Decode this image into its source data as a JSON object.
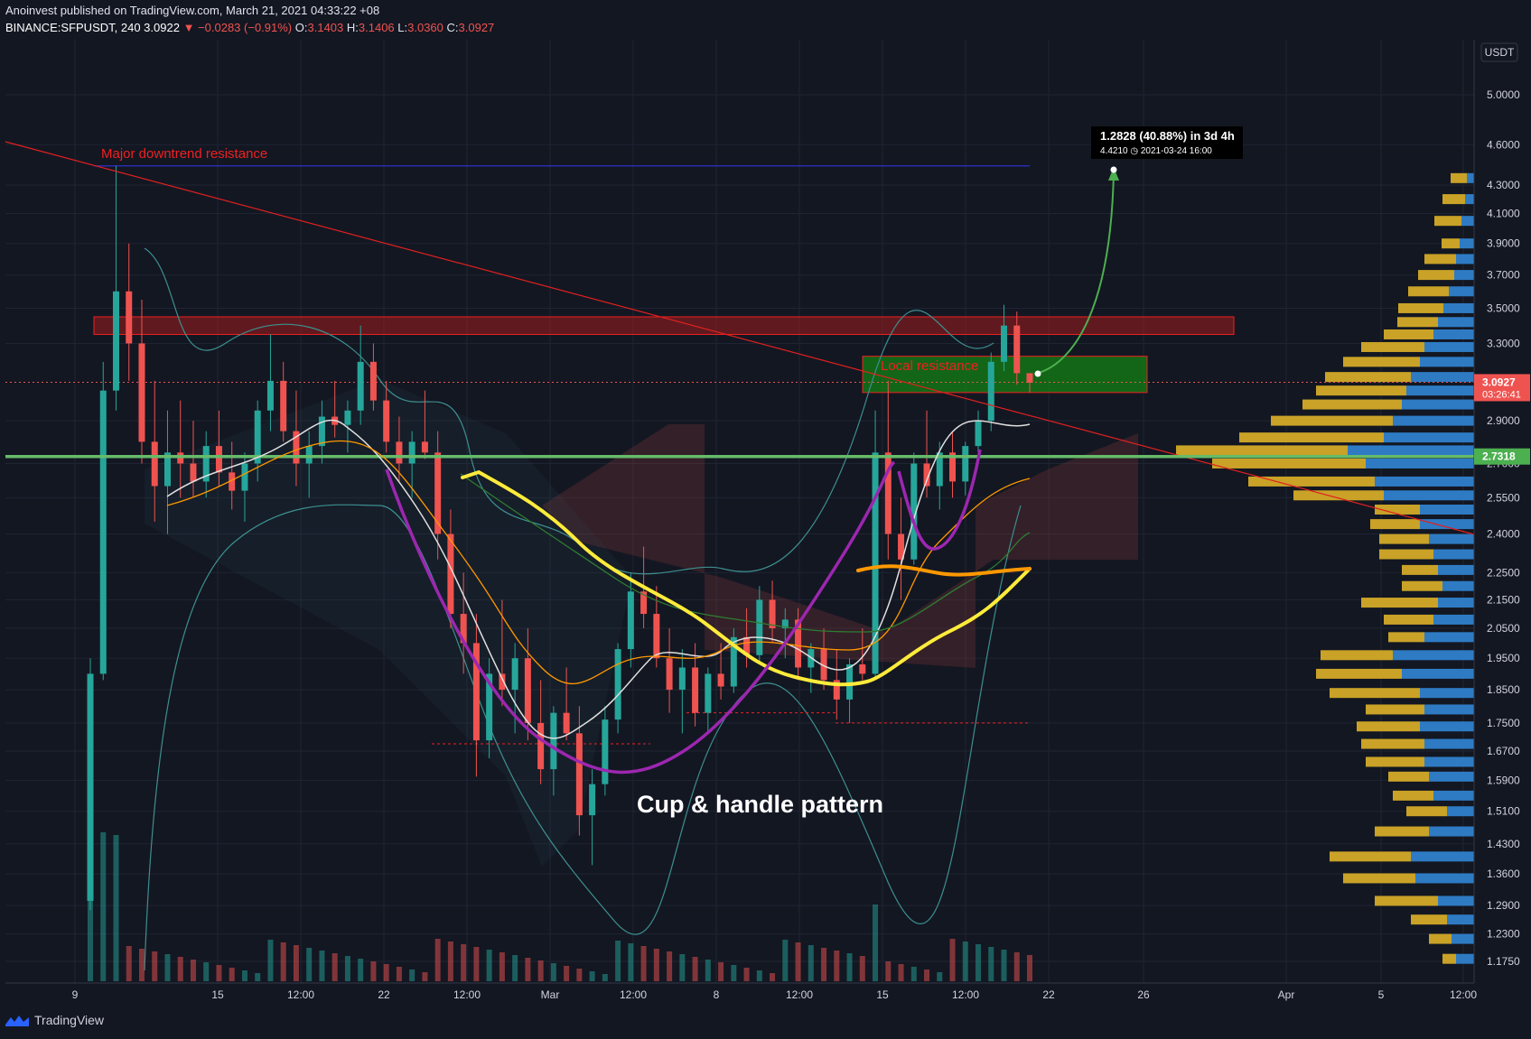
{
  "header": {
    "publisher_line": "Anoinvest published on TradingView.com, March 21, 2021 04:33:22 +08",
    "symbol": "BINANCE:SFPUSDT, 240",
    "last": "3.0922",
    "change_arrow": "▼",
    "change": "−0.0283 (−0.91%)",
    "o_label": "O:",
    "o": "3.1403",
    "h_label": "H:",
    "h": "3.1406",
    "l_label": "L:",
    "l": "3.0360",
    "c_label": "C:",
    "c": "3.0927"
  },
  "currency": "USDT",
  "footer": {
    "brand": "TradingView"
  },
  "colors": {
    "background": "#131722",
    "up": "#26a69a",
    "down": "#ef5350",
    "price_badge": "#ef5350",
    "level_badge": "#4caf50",
    "cup_line": "#9c27b0",
    "ma_yellow": "#ffeb3b",
    "ma_orange": "#ff9800",
    "volume_profile_gold": "#c9a227",
    "volume_profile_blue": "#2e7bc4"
  },
  "chart_data": {
    "type": "candlestick",
    "instrument": "BINANCE:SFPUSDT",
    "timeframe": "240",
    "y_axis": {
      "scale": "log",
      "ticks": [
        "5.0000",
        "4.6000",
        "4.3000",
        "4.1000",
        "3.9000",
        "3.7000",
        "3.5000",
        "3.3000",
        "2.9000",
        "2.7000",
        "2.5500",
        "2.4000",
        "2.2500",
        "2.1500",
        "2.0500",
        "1.9500",
        "1.8500",
        "1.7500",
        "1.6700",
        "1.5900",
        "1.5100",
        "1.4300",
        "1.3600",
        "1.2900",
        "1.2300",
        "1.1750"
      ],
      "ylim": [
        1.14,
        5.3
      ]
    },
    "x_axis": {
      "ticks": [
        "9",
        "15",
        "12:00",
        "22",
        "12:00",
        "Mar",
        "12:00",
        "8",
        "12:00",
        "15",
        "12:00",
        "22",
        "26",
        "Apr",
        "5",
        "12:00"
      ]
    },
    "price_badges": [
      {
        "value": "3.0927",
        "sub": "03:26:41",
        "color": "#ef5350",
        "price": 3.0927
      },
      {
        "value": "2.7318",
        "color": "#4caf50",
        "price": 2.7318
      }
    ],
    "annotations": {
      "downtrend_label": "Major downtrend resistance",
      "local_resistance_label": "Local resistance",
      "pattern_label": "Cup & handle pattern",
      "projection_line1": "1.2828 (40.88%) in 3d 4h",
      "projection_line2": "4.4210 ◷ 2021-03-24  16:00"
    },
    "levels": {
      "major_resistance_zone": [
        3.35,
        3.45
      ],
      "local_resistance_zone": [
        3.04,
        3.23
      ],
      "green_support": 2.7318,
      "blue_top_line": 4.44,
      "dotted_lows": [
        1.69,
        1.78,
        1.75
      ]
    },
    "candles": [
      [
        1.3,
        1.95,
        1.28,
        1.9
      ],
      [
        1.9,
        3.2,
        1.88,
        3.05
      ],
      [
        3.05,
        4.44,
        2.95,
        3.6
      ],
      [
        3.6,
        3.9,
        3.1,
        3.3
      ],
      [
        3.3,
        3.55,
        2.7,
        2.8
      ],
      [
        2.8,
        3.1,
        2.45,
        2.6
      ],
      [
        2.6,
        2.95,
        2.4,
        2.75
      ],
      [
        2.75,
        3.0,
        2.55,
        2.7
      ],
      [
        2.7,
        2.9,
        2.55,
        2.62
      ],
      [
        2.62,
        2.85,
        2.55,
        2.78
      ],
      [
        2.78,
        2.95,
        2.6,
        2.66
      ],
      [
        2.66,
        2.8,
        2.5,
        2.58
      ],
      [
        2.58,
        2.75,
        2.45,
        2.7
      ],
      [
        2.7,
        3.0,
        2.62,
        2.95
      ],
      [
        2.95,
        3.35,
        2.85,
        3.1
      ],
      [
        3.1,
        3.2,
        2.8,
        2.85
      ],
      [
        2.85,
        3.05,
        2.6,
        2.7
      ],
      [
        2.7,
        2.85,
        2.55,
        2.78
      ],
      [
        2.78,
        3.0,
        2.7,
        2.92
      ],
      [
        2.92,
        3.1,
        2.82,
        2.88
      ],
      [
        2.88,
        3.0,
        2.75,
        2.95
      ],
      [
        2.95,
        3.4,
        2.88,
        3.2
      ],
      [
        3.2,
        3.3,
        2.95,
        3.0
      ],
      [
        3.0,
        3.1,
        2.75,
        2.8
      ],
      [
        2.8,
        2.92,
        2.62,
        2.7
      ],
      [
        2.7,
        2.85,
        2.55,
        2.8
      ],
      [
        2.8,
        3.05,
        2.72,
        2.75
      ],
      [
        2.75,
        2.85,
        2.3,
        2.4
      ],
      [
        2.4,
        2.5,
        2.05,
        2.1
      ],
      [
        2.1,
        2.25,
        1.9,
        2.0
      ],
      [
        2.0,
        2.1,
        1.6,
        1.7
      ],
      [
        1.7,
        1.95,
        1.65,
        1.9
      ],
      [
        1.9,
        2.15,
        1.8,
        1.85
      ],
      [
        1.85,
        2.0,
        1.72,
        1.95
      ],
      [
        1.95,
        2.05,
        1.7,
        1.75
      ],
      [
        1.75,
        1.88,
        1.58,
        1.62
      ],
      [
        1.62,
        1.8,
        1.55,
        1.78
      ],
      [
        1.78,
        1.92,
        1.7,
        1.72
      ],
      [
        1.72,
        1.8,
        1.45,
        1.5
      ],
      [
        1.5,
        1.62,
        1.38,
        1.58
      ],
      [
        1.58,
        1.8,
        1.55,
        1.76
      ],
      [
        1.76,
        2.0,
        1.72,
        1.98
      ],
      [
        1.98,
        2.25,
        1.92,
        2.18
      ],
      [
        2.18,
        2.35,
        2.05,
        2.1
      ],
      [
        2.1,
        2.2,
        1.92,
        1.95
      ],
      [
        1.95,
        2.05,
        1.78,
        1.85
      ],
      [
        1.85,
        1.98,
        1.72,
        1.92
      ],
      [
        1.92,
        2.0,
        1.74,
        1.78
      ],
      [
        1.78,
        1.92,
        1.72,
        1.9
      ],
      [
        1.9,
        2.0,
        1.82,
        1.86
      ],
      [
        1.86,
        2.05,
        1.84,
        2.02
      ],
      [
        2.02,
        2.12,
        1.92,
        1.96
      ],
      [
        1.96,
        2.2,
        1.94,
        2.15
      ],
      [
        2.15,
        2.22,
        2.0,
        2.05
      ],
      [
        2.05,
        2.12,
        1.95,
        2.08
      ],
      [
        2.08,
        2.12,
        1.88,
        1.92
      ],
      [
        1.92,
        2.0,
        1.84,
        1.98
      ],
      [
        1.98,
        2.05,
        1.85,
        1.88
      ],
      [
        1.88,
        1.98,
        1.76,
        1.82
      ],
      [
        1.82,
        1.95,
        1.75,
        1.93
      ],
      [
        1.93,
        2.05,
        1.88,
        1.9
      ],
      [
        1.9,
        2.95,
        1.88,
        2.75
      ],
      [
        2.75,
        3.1,
        2.3,
        2.4
      ],
      [
        2.4,
        2.55,
        2.15,
        2.3
      ],
      [
        2.3,
        2.75,
        2.28,
        2.7
      ],
      [
        2.7,
        2.95,
        2.55,
        2.6
      ],
      [
        2.6,
        2.8,
        2.5,
        2.75
      ],
      [
        2.75,
        2.85,
        2.55,
        2.62
      ],
      [
        2.62,
        2.8,
        2.56,
        2.78
      ],
      [
        2.78,
        2.95,
        2.72,
        2.9
      ],
      [
        2.9,
        3.25,
        2.85,
        3.2
      ],
      [
        3.2,
        3.52,
        3.15,
        3.4
      ],
      [
        3.4,
        3.48,
        3.08,
        3.14
      ],
      [
        3.14,
        3.14,
        3.04,
        3.09
      ]
    ],
    "volume_profile_note": "right-side horizontal volume profile (gold = sell, blue = buy)"
  }
}
